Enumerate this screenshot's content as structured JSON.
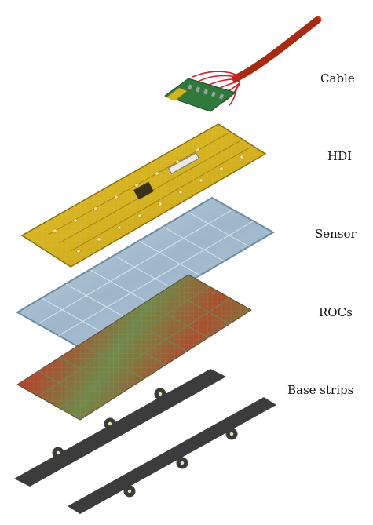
{
  "layers": [
    {
      "label": "Cable"
    },
    {
      "label": "HDI"
    },
    {
      "label": "Sensor"
    },
    {
      "label": "ROCs"
    },
    {
      "label": "Base strips"
    }
  ],
  "colors": {
    "cable": "#e0401a",
    "cable_wires": "#d8202a",
    "connector": "#2f7a3a",
    "hdi": "#d6b21e",
    "hdi_dark": "#8a6d08",
    "sensor": "#9fb8cc",
    "sensor_edge": "#6d8aa3",
    "roc_a": "#b04a2c",
    "roc_b": "#5f8a4a",
    "base": "#3c3c3c"
  }
}
